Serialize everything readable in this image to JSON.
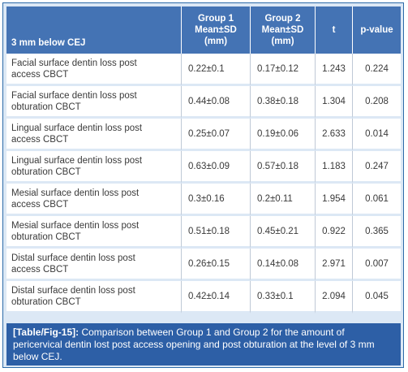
{
  "table": {
    "headers": {
      "location": "3 mm below CEJ",
      "group1": [
        "Group 1",
        "Mean±SD",
        "(mm)"
      ],
      "group2": [
        "Group 2",
        "Mean±SD",
        "(mm)"
      ],
      "t": "t",
      "p": "p-value"
    },
    "rows": [
      {
        "label1": "Facial surface dentin loss post",
        "label2": "access CBCT",
        "g1": "0.22±0.1",
        "g2": "0.17±0.12",
        "t": "1.243",
        "p": "0.224"
      },
      {
        "label1": "Facial surface dentin loss post",
        "label2": "obturation CBCT",
        "g1": "0.44±0.08",
        "g2": "0.38±0.18",
        "t": "1.304",
        "p": "0.208"
      },
      {
        "label1": "Lingual surface dentin loss post",
        "label2": "access CBCT",
        "g1": "0.25±0.07",
        "g2": "0.19±0.06",
        "t": "2.633",
        "p": "0.014"
      },
      {
        "label1": "Lingual surface dentin loss post",
        "label2": "obturation CBCT",
        "g1": "0.63±0.09",
        "g2": "0.57±0.18",
        "t": "1.183",
        "p": "0.247"
      },
      {
        "label1": "Mesial surface dentin loss post",
        "label2": "access CBCT",
        "g1": "0.3±0.16",
        "g2": "0.2±0.11",
        "t": "1.954",
        "p": "0.061"
      },
      {
        "label1": "Mesial surface dentin loss post",
        "label2": "obturation CBCT",
        "g1": "0.51±0.18",
        "g2": "0.45±0.21",
        "t": "0.922",
        "p": "0.365"
      },
      {
        "label1": "Distal surface dentin loss post",
        "label2": "access CBCT",
        "g1": "0.26±0.15",
        "g2": "0.14±0.08",
        "t": "2.971",
        "p": "0.007"
      },
      {
        "label1": "Distal surface dentin loss post",
        "label2": "obturation CBCT",
        "g1": "0.42±0.14",
        "g2": "0.33±0.1",
        "t": "2.094",
        "p": "0.045"
      }
    ]
  },
  "caption": {
    "tag": "[Table/Fig-15]:",
    "text": " Comparison between Group 1 and Group 2 for the amount of pericervical dentin lost post access opening and post obturation at the level of 3 mm below CEJ."
  },
  "colors": {
    "header_bg": "#4473b4",
    "caption_bg": "#2d5fa6",
    "frame_bg": "#dce8f5",
    "border": "#2c6aa8"
  }
}
